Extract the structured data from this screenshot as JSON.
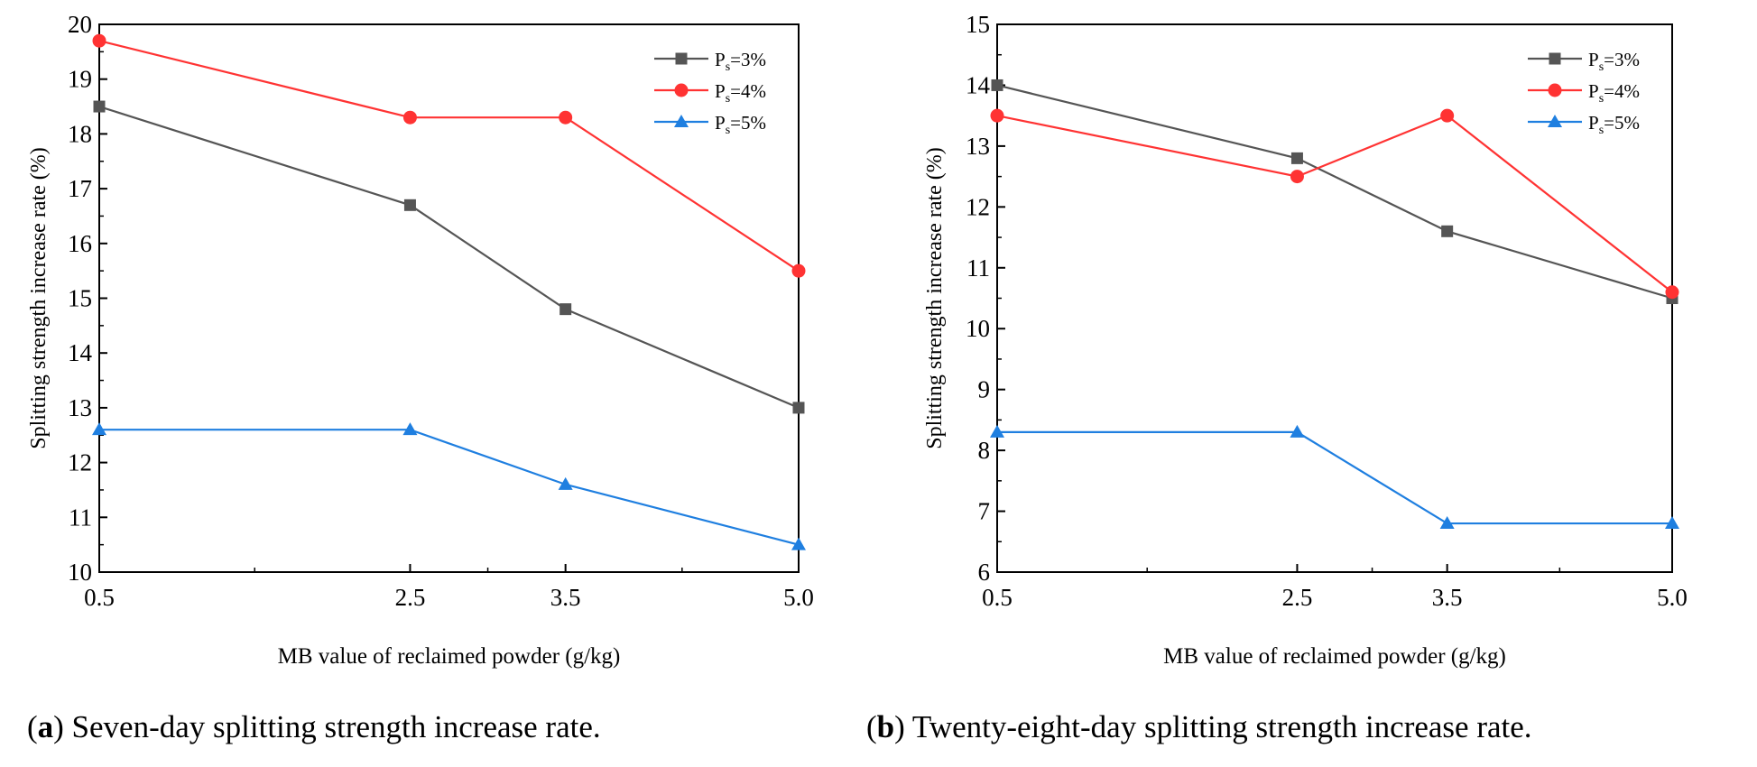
{
  "colors": {
    "s3": "#555555",
    "s4": "#ff3333",
    "s5": "#1f7fe0",
    "axis": "#000000"
  },
  "chart_data": [
    {
      "type": "line",
      "panel": "a",
      "caption": {
        "label": "a",
        "text": ") Seven-day splitting strength increase rate.",
        "open": "("
      },
      "x": [
        0.5,
        2.5,
        3.5,
        5.0
      ],
      "xticks": [
        "0.5",
        "2.5",
        "3.5",
        "5.0"
      ],
      "xlabel": "MB value of reclaimed powder  (g/kg)",
      "ylabel": "Splitting strength increase rate (%)",
      "ylim": [
        10,
        20
      ],
      "yticks": [
        "10",
        "11",
        "12",
        "13",
        "14",
        "15",
        "16",
        "17",
        "18",
        "19",
        "20"
      ],
      "series": [
        {
          "name_main": "P",
          "name_sub": "s",
          "name_rest": "=3%",
          "marker": "square",
          "color_key": "s3",
          "values": [
            18.5,
            16.7,
            14.8,
            13.0
          ]
        },
        {
          "name_main": "P",
          "name_sub": "s",
          "name_rest": "=4%",
          "marker": "circle",
          "color_key": "s4",
          "values": [
            19.7,
            18.3,
            18.3,
            15.5
          ]
        },
        {
          "name_main": "P",
          "name_sub": "s",
          "name_rest": "=5%",
          "marker": "triangle",
          "color_key": "s5",
          "values": [
            12.6,
            12.6,
            11.6,
            10.5
          ]
        }
      ],
      "legend": "top-right"
    },
    {
      "type": "line",
      "panel": "b",
      "caption": {
        "label": "b",
        "text": ") Twenty-eight-day splitting strength increase rate.",
        "open": "("
      },
      "x": [
        0.5,
        2.5,
        3.5,
        5.0
      ],
      "xticks": [
        "0.5",
        "2.5",
        "3.5",
        "5.0"
      ],
      "xlabel": "MB value of  reclaimed powder (g/kg)",
      "ylabel": "Splitting strength increase rate (%)",
      "ylim": [
        6,
        15
      ],
      "yticks": [
        "6",
        "7",
        "8",
        "9",
        "10",
        "11",
        "12",
        "13",
        "14",
        "15"
      ],
      "series": [
        {
          "name_main": "P",
          "name_sub": "s",
          "name_rest": "=3%",
          "marker": "square",
          "color_key": "s3",
          "values": [
            14.0,
            12.8,
            11.6,
            10.5
          ]
        },
        {
          "name_main": "P",
          "name_sub": "s",
          "name_rest": "=4%",
          "marker": "circle",
          "color_key": "s4",
          "values": [
            13.5,
            12.5,
            13.5,
            10.6
          ]
        },
        {
          "name_main": "P",
          "name_sub": "s",
          "name_rest": "=5%",
          "marker": "triangle",
          "color_key": "s5",
          "values": [
            8.3,
            8.3,
            6.8,
            6.8
          ]
        }
      ],
      "legend": "top-right"
    }
  ]
}
